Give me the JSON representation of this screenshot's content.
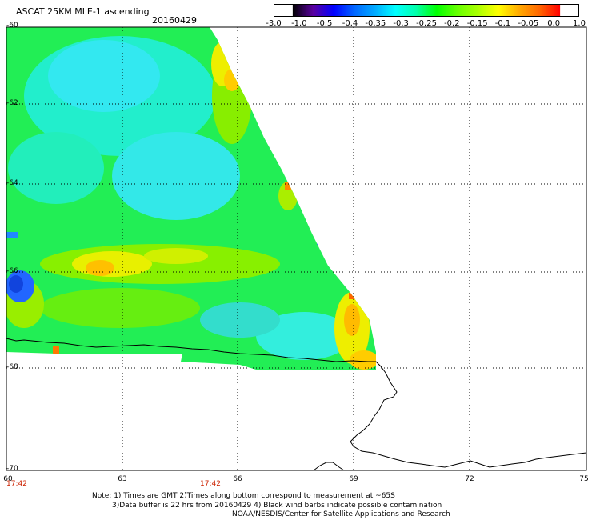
{
  "title": "ASCAT 25KM MLE-1 ascending",
  "date": "20160429",
  "colorbar": {
    "labels": [
      "-3.0",
      "-1.0",
      "-0.5",
      "-0.4",
      "-0.35",
      "-0.3",
      "-0.25",
      "-0.2",
      "-0.15",
      "-0.1",
      "-0.05",
      "0.0",
      "1.0"
    ],
    "colors": [
      "#000000",
      "#5a00a0",
      "#0000ff",
      "#0066ff",
      "#00aaff",
      "#00ffff",
      "#00ffaa",
      "#00ff00",
      "#66ff00",
      "#aaff00",
      "#ffff00",
      "#ffaa00",
      "#ff6600",
      "#ff0000"
    ]
  },
  "latitude_labels": [
    "-60",
    "-62",
    "-64",
    "-66",
    "-68",
    "-70"
  ],
  "longitude_labels": [
    "60",
    "63",
    "66",
    "69",
    "72",
    "75"
  ],
  "times": [
    "17:42",
    "17:42"
  ],
  "notes": [
    "Note: 1) Times are GMT 2)Times along bottom correspond to measurement at ~65S",
    "3)Data buffer is 22 hrs from 20160429 4) Black wind barbs indicate possible contamination",
    "NOAA/NESDIS/Center for Satellite Applications and Research"
  ]
}
